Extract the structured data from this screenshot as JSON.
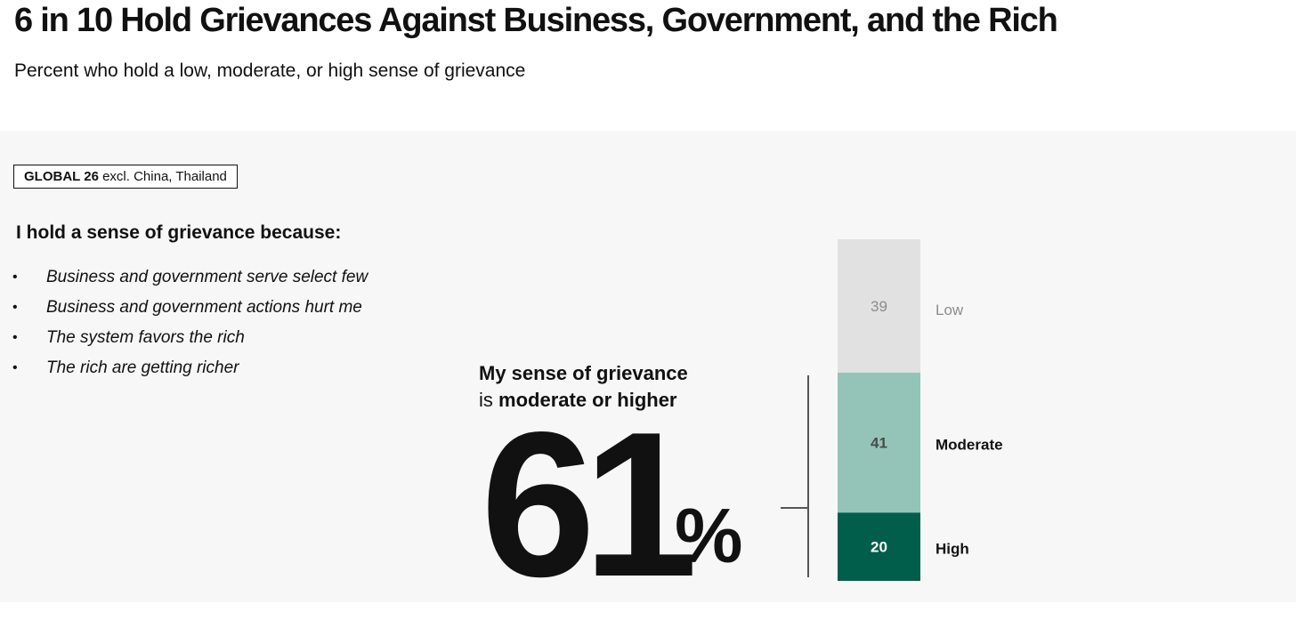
{
  "header": {
    "title": "6 in 10 Hold Grievances Against Business, Government, and the Rich",
    "subtitle": "Percent who hold a low, moderate, or high sense of grievance"
  },
  "badge": {
    "bold": "GLOBAL 26",
    "rest": "excl. China, Thailand"
  },
  "reasons": {
    "heading": "I hold a sense of grievance because:",
    "items": [
      "Business and government serve select few",
      "Business and government actions hurt me",
      "The system favors the rich",
      "The rich are getting richer"
    ]
  },
  "callout": {
    "line1": "My sense of grievance",
    "line2_prefix": "is",
    "line2_bold": "moderate or higher",
    "value": "61",
    "unit": "%"
  },
  "chart_data": {
    "type": "bar",
    "stacked": true,
    "orientation": "vertical",
    "categories": [
      "GLOBAL 26 excl. China, Thailand"
    ],
    "series": [
      {
        "name": "High",
        "values": [
          20
        ],
        "color": "#005e4b",
        "label_color": "#ffffff"
      },
      {
        "name": "Moderate",
        "values": [
          41
        ],
        "color": "#94c4b7",
        "label_color": "#4a4a4a"
      },
      {
        "name": "Low",
        "values": [
          39
        ],
        "color": "#e1e1e1",
        "label_color": "#8c8c8c"
      }
    ],
    "ylim": [
      0,
      100
    ]
  }
}
